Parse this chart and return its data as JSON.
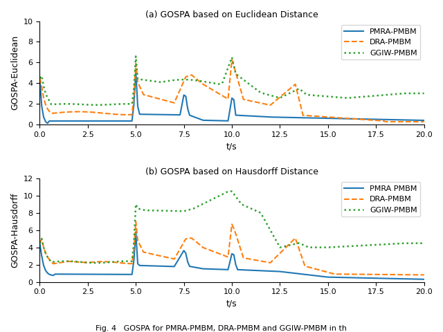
{
  "title_a": "(a) GOSPA based on Euclidean Distance",
  "title_b": "(b) GOSPA based on Hausdorff Distance",
  "xlabel": "t/s",
  "ylabel_a": "GOSPA-Euclidean",
  "ylabel_b": "GOSPA-Hausdorff",
  "xlim": [
    0.0,
    20.0
  ],
  "ylim_a": [
    0,
    10
  ],
  "ylim_b": [
    0,
    12
  ],
  "xticks": [
    0.0,
    2.5,
    5.0,
    7.5,
    10.0,
    12.5,
    15.0,
    17.5,
    20.0
  ],
  "yticks_a": [
    0,
    2,
    4,
    6,
    8,
    10
  ],
  "yticks_b": [
    0,
    2,
    4,
    6,
    8,
    10,
    12
  ],
  "legend_a": [
    "PMRA-PMBM",
    "DRA-PMBM",
    "GGIW-PMBM"
  ],
  "legend_b": [
    "PMRA PMBM",
    "DRA-PMBM",
    "GGIW-PMBM"
  ],
  "colors": [
    "#1f77b4",
    "#ff7f0e",
    "#2ca02c"
  ],
  "linestyles": [
    "-",
    "--",
    ":"
  ],
  "linewidths": [
    1.5,
    1.5,
    1.8
  ],
  "fig_caption": "Fig. 4   GOSPA for PMRA-PMBM, DRA-PMBM and GGIW-PMBM in th"
}
